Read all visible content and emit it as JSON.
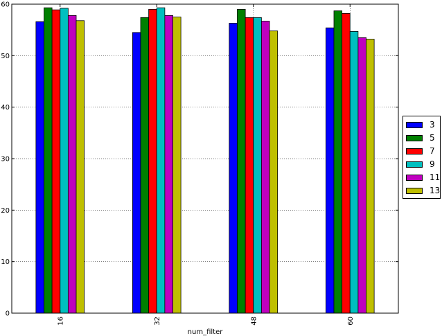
{
  "chart_data": {
    "type": "bar",
    "title": "",
    "xlabel": "num_filter",
    "ylabel": "",
    "ylim": [
      0,
      60
    ],
    "yticks": [
      0,
      10,
      20,
      30,
      40,
      50,
      60
    ],
    "grid": true,
    "legend_position": "right",
    "categories": [
      "16",
      "32",
      "48",
      "60"
    ],
    "series": [
      {
        "name": "3",
        "color": "#0000ff",
        "values": [
          56.6,
          54.5,
          56.3,
          55.4
        ]
      },
      {
        "name": "5",
        "color": "#008000",
        "values": [
          59.3,
          57.4,
          59.0,
          58.7
        ]
      },
      {
        "name": "7",
        "color": "#ff0000",
        "values": [
          58.9,
          59.0,
          57.4,
          58.2
        ]
      },
      {
        "name": "9",
        "color": "#00bfbf",
        "values": [
          59.2,
          59.3,
          57.4,
          54.7
        ]
      },
      {
        "name": "11",
        "color": "#bf00bf",
        "values": [
          57.8,
          57.8,
          56.7,
          53.5
        ]
      },
      {
        "name": "13",
        "color": "#bfbf00",
        "values": [
          56.8,
          57.5,
          54.8,
          53.2
        ]
      }
    ]
  }
}
